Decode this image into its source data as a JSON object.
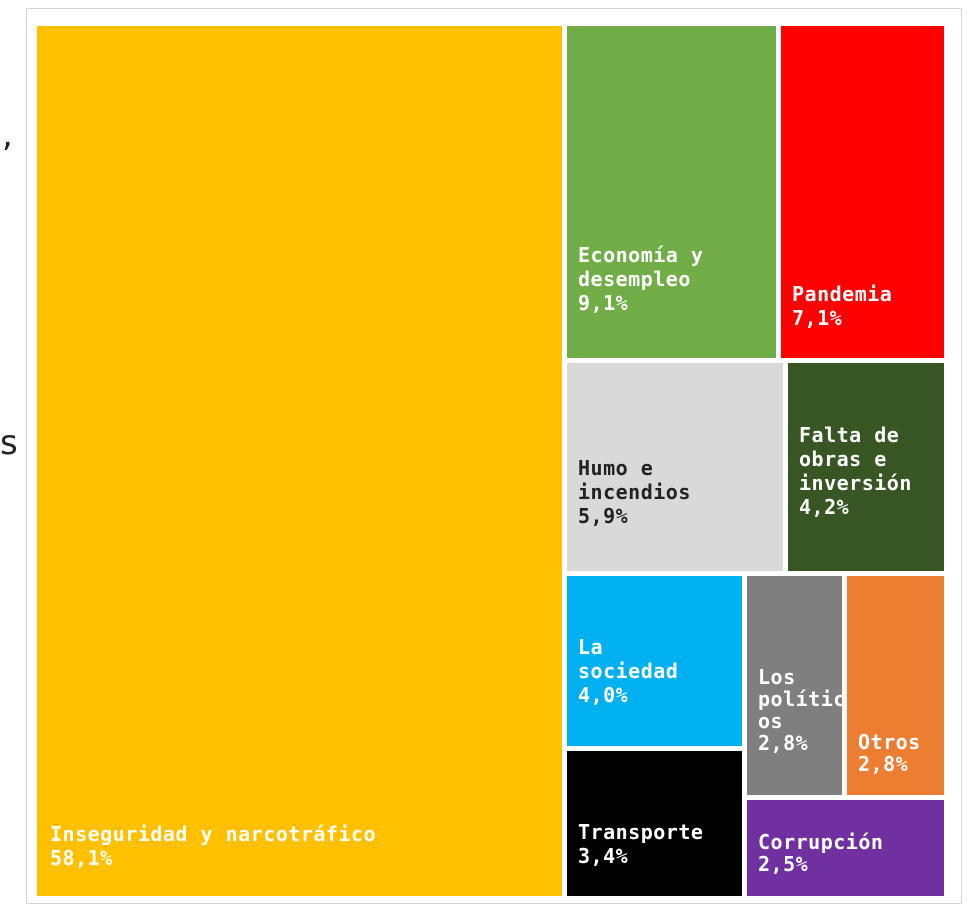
{
  "chart_data": {
    "type": "treemap",
    "unit": "%",
    "items": [
      {
        "label_lines": [
          "Inseguridad y narcotráfico"
        ],
        "value_text": "58,1%",
        "value": 58.1,
        "color": "#FFC000",
        "text_color": "#ffffff"
      },
      {
        "label_lines": [
          "Economía y",
          "desempleo"
        ],
        "value_text": "9,1%",
        "value": 9.1,
        "color": "#70AD47",
        "text_color": "#ffffff"
      },
      {
        "label_lines": [
          "Pandemia"
        ],
        "value_text": "7,1%",
        "value": 7.1,
        "color": "#FF0000",
        "text_color": "#ffffff"
      },
      {
        "label_lines": [
          "Humo e",
          "incendios"
        ],
        "value_text": "5,9%",
        "value": 5.9,
        "color": "#D9D9D9",
        "text_color": "#222222"
      },
      {
        "label_lines": [
          "Falta de",
          "obras e",
          "inversión"
        ],
        "value_text": "4,2%",
        "value": 4.2,
        "color": "#375623",
        "text_color": "#ffffff"
      },
      {
        "label_lines": [
          "La",
          "sociedad"
        ],
        "value_text": "4,0%",
        "value": 4.0,
        "color": "#00B0F0",
        "text_color": "#ffffff"
      },
      {
        "label_lines": [
          "Los",
          "polític",
          "os"
        ],
        "value_text": "2,8%",
        "value": 2.8,
        "color": "#7F7F7F",
        "text_color": "#ffffff"
      },
      {
        "label_lines": [
          "Otros"
        ],
        "value_text": "2,8%",
        "value": 2.8,
        "color": "#ED7D31",
        "text_color": "#ffffff"
      },
      {
        "label_lines": [
          "Transporte"
        ],
        "value_text": "3,4%",
        "value": 3.4,
        "color": "#000000",
        "text_color": "#ffffff"
      },
      {
        "label_lines": [
          "Corrupción"
        ],
        "value_text": "2,5%",
        "value": 2.5,
        "color": "#7030A0",
        "text_color": "#ffffff"
      }
    ]
  },
  "edge_glyphs": [
    ",",
    "s"
  ]
}
